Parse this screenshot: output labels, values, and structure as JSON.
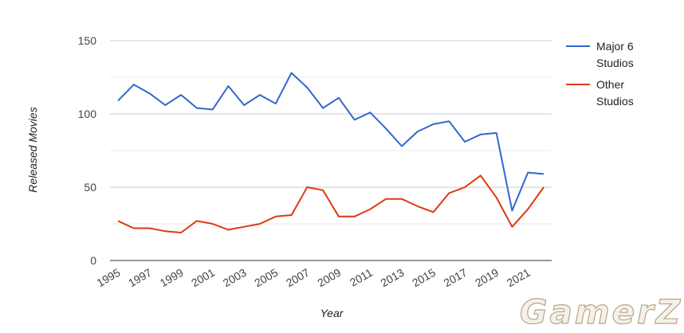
{
  "chart_data": {
    "type": "line",
    "xlabel": "Year",
    "ylabel": "Released Movies",
    "ylim": [
      0,
      150
    ],
    "yticks": [
      0,
      50,
      100,
      150
    ],
    "xticks": [
      1995,
      1997,
      1999,
      2001,
      2003,
      2005,
      2007,
      2009,
      2011,
      2013,
      2015,
      2017,
      2019,
      2021
    ],
    "x": [
      1995,
      1996,
      1997,
      1998,
      1999,
      2000,
      2001,
      2002,
      2003,
      2004,
      2005,
      2006,
      2007,
      2008,
      2009,
      2010,
      2011,
      2012,
      2013,
      2014,
      2015,
      2016,
      2017,
      2018,
      2019,
      2020,
      2021,
      2022
    ],
    "series": [
      {
        "name": "Major 6 Studios",
        "name_lines": [
          "Major 6",
          "Studios"
        ],
        "color": "#3366cc",
        "values": [
          109,
          120,
          114,
          106,
          113,
          104,
          103,
          119,
          106,
          113,
          107,
          128,
          118,
          104,
          111,
          96,
          101,
          90,
          78,
          88,
          93,
          95,
          81,
          86,
          87,
          34,
          60,
          59
        ]
      },
      {
        "name": "Other Studios",
        "name_lines": [
          "Other",
          "Studios"
        ],
        "color": "#dc3912",
        "values": [
          27,
          22,
          22,
          20,
          19,
          27,
          25,
          21,
          23,
          25,
          30,
          31,
          50,
          48,
          30,
          30,
          35,
          42,
          42,
          37,
          33,
          46,
          50,
          58,
          43,
          23,
          35,
          50
        ]
      }
    ],
    "grid": true,
    "legend_position": "right"
  },
  "watermark": {
    "text": "GamerZ"
  }
}
